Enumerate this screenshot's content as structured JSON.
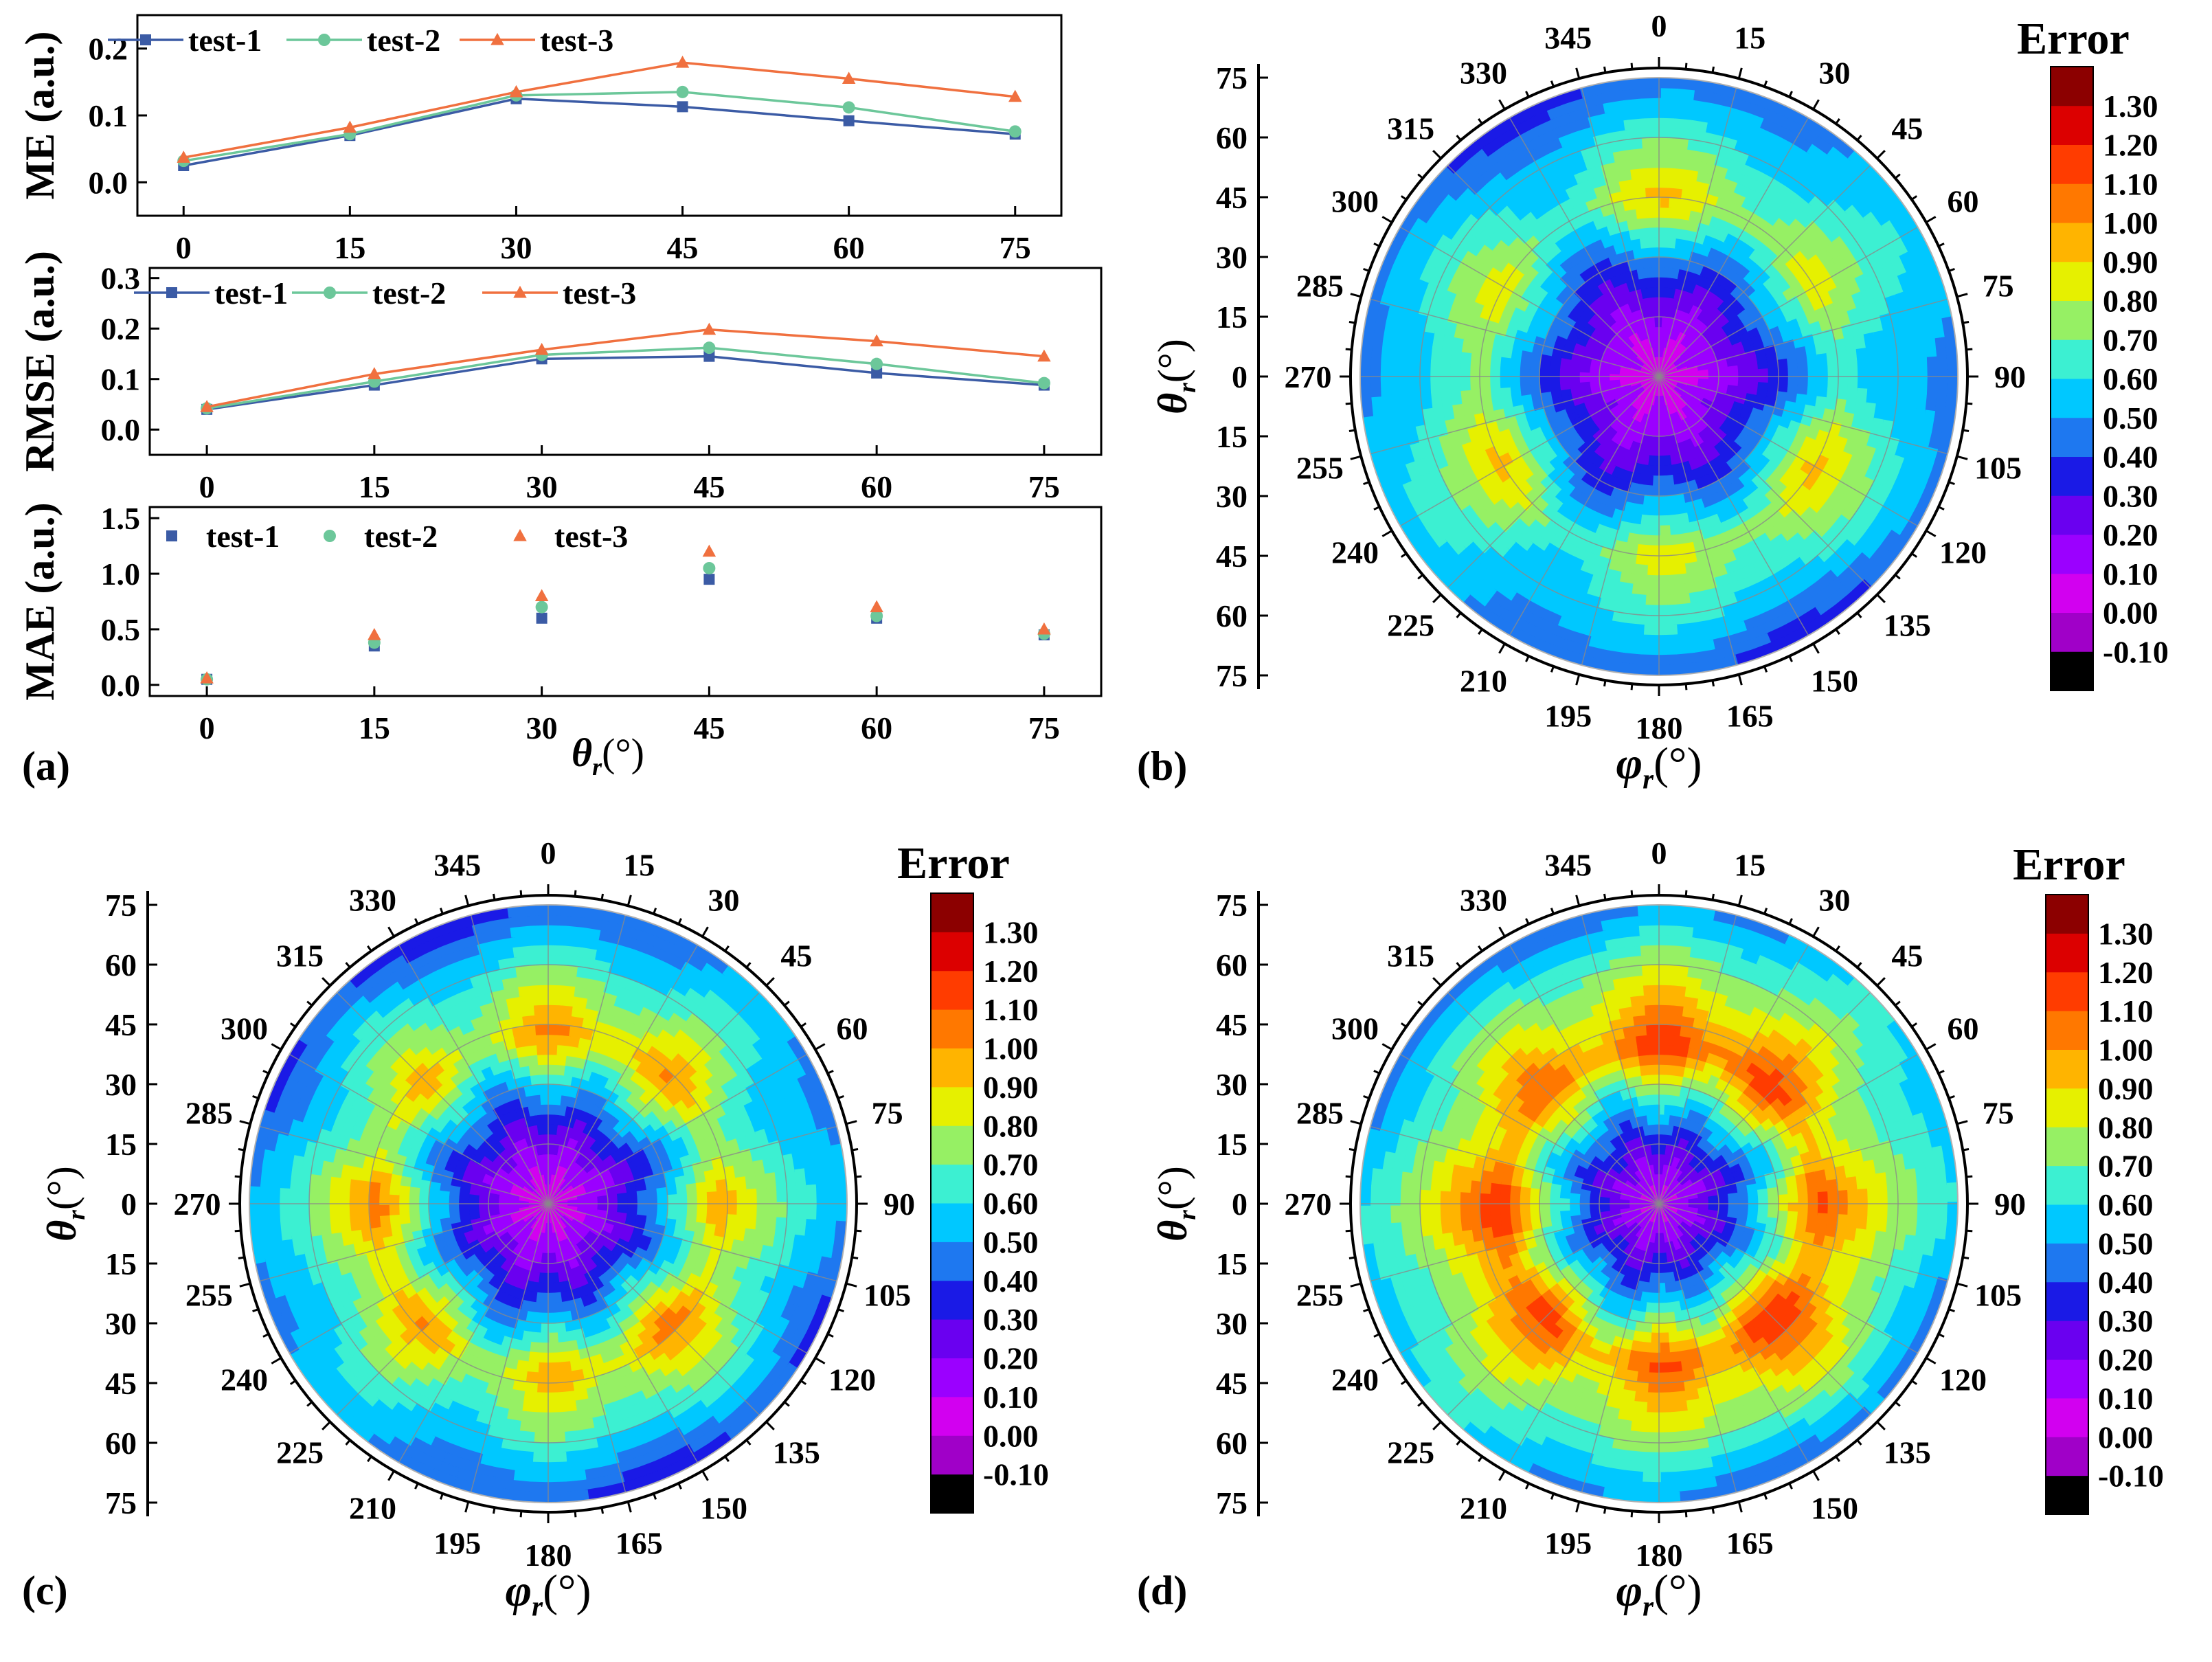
{
  "figure": {
    "panel_letters": [
      "(a)",
      "(b)",
      "(c)",
      "(d)"
    ]
  },
  "chart_data": [
    {
      "id": "a1",
      "type": "line",
      "ylabel": "ME (a.u.)",
      "xlabel": "",
      "categories": [
        0,
        15,
        30,
        45,
        60,
        75
      ],
      "x_tick_labels": [
        "0",
        "15",
        "30",
        "45",
        "60",
        "75"
      ],
      "ylim": [
        -0.05,
        0.25
      ],
      "y_ticks": [
        0.0,
        0.1,
        0.2
      ],
      "y_tick_labels": [
        "0.0",
        "0.1",
        "0.2"
      ],
      "legend": "top-left",
      "series": [
        {
          "name": "test-1",
          "marker": "square",
          "color": "#3b5ba5",
          "values": [
            0.025,
            0.07,
            0.125,
            0.113,
            0.092,
            0.072
          ]
        },
        {
          "name": "test-2",
          "marker": "circle",
          "color": "#6cc79a",
          "values": [
            0.032,
            0.072,
            0.13,
            0.135,
            0.112,
            0.076
          ]
        },
        {
          "name": "test-3",
          "marker": "triangle",
          "color": "#f0703f",
          "values": [
            0.037,
            0.082,
            0.135,
            0.179,
            0.155,
            0.128
          ]
        }
      ]
    },
    {
      "id": "a2",
      "type": "line",
      "ylabel": "RMSE (a.u.)",
      "xlabel": "",
      "categories": [
        0,
        15,
        30,
        45,
        60,
        75
      ],
      "x_tick_labels": [
        "0",
        "15",
        "30",
        "45",
        "60",
        "75"
      ],
      "ylim": [
        -0.05,
        0.32
      ],
      "y_ticks": [
        0.0,
        0.1,
        0.2,
        0.3
      ],
      "y_tick_labels": [
        "0.0",
        "0.1",
        "0.2",
        "0.3"
      ],
      "legend": "top-left",
      "series": [
        {
          "name": "test-1",
          "marker": "square",
          "color": "#3b5ba5",
          "values": [
            0.04,
            0.088,
            0.14,
            0.145,
            0.112,
            0.088
          ]
        },
        {
          "name": "test-2",
          "marker": "circle",
          "color": "#6cc79a",
          "values": [
            0.042,
            0.095,
            0.148,
            0.162,
            0.13,
            0.092
          ]
        },
        {
          "name": "test-3",
          "marker": "triangle",
          "color": "#f0703f",
          "values": [
            0.045,
            0.11,
            0.158,
            0.198,
            0.175,
            0.145
          ]
        }
      ]
    },
    {
      "id": "a3",
      "type": "scatter",
      "ylabel": "MAE (a.u.)",
      "xlabel": "θr(°)",
      "categories": [
        0,
        15,
        30,
        45,
        60,
        75
      ],
      "x_tick_labels": [
        "0",
        "15",
        "30",
        "45",
        "60",
        "75"
      ],
      "ylim": [
        -0.1,
        1.6
      ],
      "y_ticks": [
        0.0,
        0.5,
        1.0,
        1.5
      ],
      "y_tick_labels": [
        "0.0",
        "0.5",
        "1.0",
        "1.5"
      ],
      "legend": "top-left",
      "series": [
        {
          "name": "test-1",
          "marker": "square",
          "color": "#3b5ba5",
          "values": [
            0.05,
            0.35,
            0.6,
            0.95,
            0.6,
            0.45
          ]
        },
        {
          "name": "test-2",
          "marker": "circle",
          "color": "#6cc79a",
          "values": [
            0.05,
            0.38,
            0.7,
            1.05,
            0.62,
            0.46
          ]
        },
        {
          "name": "test-3",
          "marker": "triangle",
          "color": "#f0703f",
          "values": [
            0.06,
            0.45,
            0.8,
            1.2,
            0.7,
            0.5
          ]
        }
      ]
    },
    {
      "id": "b",
      "type": "heatmap",
      "subtype": "polar-contour",
      "phi_label": "φr(°)",
      "theta_label": "θr(°)",
      "phi_tick_labels": [
        "0",
        "15",
        "30",
        "45",
        "60",
        "75",
        "90",
        "105",
        "120",
        "135",
        "150",
        "165",
        "180",
        "195",
        "210",
        "225",
        "240",
        "255",
        "270",
        "285",
        "300",
        "315",
        "330",
        "345"
      ],
      "theta_tick_labels_top": [
        "75",
        "60",
        "45",
        "30",
        "15"
      ],
      "theta_tick_labels_bottom": [
        "0",
        "15",
        "30",
        "45",
        "60",
        "75"
      ],
      "theta_max": 75,
      "error_model": {
        "center": 0.05,
        "peak": 0.8,
        "peak_theta": 45,
        "edge": 0.45,
        "modulation": 0.1,
        "lobes": 6
      }
    },
    {
      "id": "c",
      "type": "heatmap",
      "subtype": "polar-contour",
      "phi_label": "φr(°)",
      "theta_label": "θr(°)",
      "phi_tick_labels": [
        "0",
        "15",
        "30",
        "45",
        "60",
        "75",
        "90",
        "105",
        "120",
        "135",
        "150",
        "165",
        "180",
        "195",
        "210",
        "225",
        "240",
        "255",
        "270",
        "285",
        "300",
        "315",
        "330",
        "345"
      ],
      "theta_tick_labels_top": [
        "75",
        "60",
        "45",
        "30",
        "15"
      ],
      "theta_tick_labels_bottom": [
        "0",
        "15",
        "30",
        "45",
        "60",
        "75"
      ],
      "theta_max": 75,
      "error_model": {
        "center": 0.05,
        "peak": 0.92,
        "peak_theta": 43,
        "edge": 0.42,
        "modulation": 0.1,
        "lobes": 8
      }
    },
    {
      "id": "d",
      "type": "heatmap",
      "subtype": "polar-contour",
      "phi_label": "φr(°)",
      "theta_label": "θr(°)",
      "phi_tick_labels": [
        "0",
        "15",
        "30",
        "45",
        "60",
        "75",
        "90",
        "105",
        "120",
        "135",
        "150",
        "165",
        "180",
        "195",
        "210",
        "225",
        "240",
        "255",
        "270",
        "285",
        "300",
        "315",
        "330",
        "345"
      ],
      "theta_tick_labels_top": [
        "75",
        "60",
        "45",
        "30",
        "15"
      ],
      "theta_tick_labels_bottom": [
        "0",
        "15",
        "30",
        "45",
        "60",
        "75"
      ],
      "theta_max": 75,
      "error_model": {
        "center": 0.1,
        "peak": 1.08,
        "peak_theta": 40,
        "edge": 0.5,
        "modulation": 0.1,
        "lobes": 8
      }
    }
  ],
  "colorbar": {
    "title": "Error",
    "levels": [
      -0.1,
      0.0,
      0.1,
      0.2,
      0.3,
      0.4,
      0.5,
      0.6,
      0.7,
      0.8,
      0.9,
      1.0,
      1.1,
      1.2,
      1.3
    ],
    "tick_labels": [
      "-0.10",
      "0.00",
      "0.10",
      "0.20",
      "0.30",
      "0.40",
      "0.50",
      "0.60",
      "0.70",
      "0.80",
      "0.90",
      "1.00",
      "1.10",
      "1.20",
      "1.30"
    ],
    "colors": [
      "#000000",
      "#a000c8",
      "#d200f0",
      "#9b00ff",
      "#6a00f0",
      "#1a1ae6",
      "#1e78f0",
      "#00c8ff",
      "#3cf0d2",
      "#96f064",
      "#e6f000",
      "#ffb400",
      "#ff7800",
      "#ff3c00",
      "#dc0000",
      "#8c0000"
    ]
  }
}
